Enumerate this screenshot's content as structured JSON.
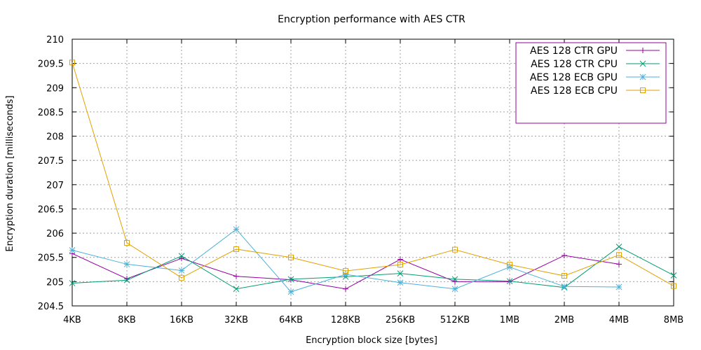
{
  "chart_data": {
    "type": "line",
    "title": "Encryption performance with AES CTR",
    "xlabel": "Encryption block size [bytes]",
    "ylabel": "Encryption duration [milliseconds]",
    "categories": [
      "4KB",
      "8KB",
      "16KB",
      "32KB",
      "64KB",
      "128KB",
      "256KB",
      "512KB",
      "1MB",
      "2MB",
      "4MB",
      "8MB"
    ],
    "ylim": [
      204.5,
      210
    ],
    "yticks": [
      "204.5",
      "205",
      "205.5",
      "206",
      "206.5",
      "207",
      "207.5",
      "208",
      "208.5",
      "209",
      "209.5",
      "210"
    ],
    "grid": true,
    "legend_position": "top-right",
    "series": [
      {
        "name": "AES 128 CTR GPU",
        "color": "#94009f",
        "marker": "plus",
        "values": [
          205.58,
          205.06,
          205.48,
          205.11,
          205.04,
          204.85,
          205.46,
          205.0,
          205.0,
          205.54,
          205.36,
          null
        ]
      },
      {
        "name": "AES 128 CTR CPU",
        "color": "#009e73",
        "marker": "cross",
        "values": [
          204.97,
          205.03,
          205.53,
          204.85,
          205.05,
          205.1,
          205.17,
          205.05,
          205.01,
          204.88,
          205.72,
          205.13
        ]
      },
      {
        "name": "AES 128 ECB GPU",
        "color": "#4bb1d8",
        "marker": "star",
        "values": [
          205.65,
          205.36,
          205.23,
          206.08,
          204.79,
          205.15,
          204.98,
          204.85,
          205.3,
          204.9,
          204.89,
          null
        ]
      },
      {
        "name": "AES 128 ECB CPU",
        "color": "#e0a200",
        "marker": "square",
        "values": [
          209.52,
          205.8,
          205.08,
          205.67,
          205.5,
          205.22,
          205.35,
          205.66,
          205.35,
          205.12,
          205.55,
          204.91
        ]
      }
    ]
  }
}
